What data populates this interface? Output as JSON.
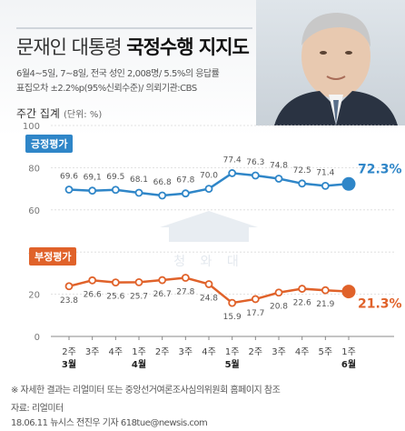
{
  "header": {
    "title_prefix": "문재인 대통령",
    "title_main": "국정수행 지지도",
    "desc_line1": "6월4~5일, 7~8일, 전국 성인 2,008명/ 5.5%의 응답률",
    "desc_line2": "표집오차 ±2.2%p(95%신뢰수준)/ 의뢰기관:CBS",
    "unit_label": "주간 집계",
    "unit_sub": "(단위: %)"
  },
  "watermark": {
    "text": "청 와 대"
  },
  "chart_data": {
    "type": "line",
    "x": [
      "2주",
      "3주",
      "4주",
      "1주",
      "2주",
      "3주",
      "4주",
      "1주",
      "2주",
      "3주",
      "4주",
      "5주",
      "1주"
    ],
    "month_labels": [
      {
        "index": 0,
        "label": "3월"
      },
      {
        "index": 3,
        "label": "4월"
      },
      {
        "index": 7,
        "label": "5월"
      },
      {
        "index": 12,
        "label": "6월"
      }
    ],
    "ylim": [
      0,
      100
    ],
    "yticks": [
      0,
      20,
      40,
      60,
      80,
      100
    ],
    "grid": true,
    "series": [
      {
        "name": "긍정평가",
        "color": "#2f86c8",
        "values": [
          69.6,
          69.1,
          69.5,
          68.1,
          66.8,
          67.8,
          70.0,
          77.4,
          76.3,
          74.8,
          72.5,
          71.4,
          72.3
        ],
        "labels": [
          "69.6",
          "69,1",
          "69.5",
          "68.1",
          "66.8",
          "67.8",
          "70.0",
          "77.4",
          "76.3",
          "74.8",
          "72.5",
          "71.4",
          "72.3%"
        ]
      },
      {
        "name": "부정평가",
        "color": "#e0622a",
        "values": [
          23.8,
          26.6,
          25.6,
          25.7,
          26.7,
          27.8,
          24.8,
          15.9,
          17.7,
          20.8,
          22.6,
          21.9,
          21.3
        ],
        "labels": [
          "23.8",
          "26.6",
          "25.6",
          "25.7",
          "26.7",
          "27.8",
          "24.8",
          "15.9",
          "17.7",
          "20.8",
          "22.6",
          "21.9",
          "21.3%"
        ]
      }
    ]
  },
  "footer": {
    "note": "※ 자세한 결과는 리얼미터 또는 중앙선거여론조사심의위원회 홈페이지 참조",
    "source": "자료: 리얼미터",
    "credit": "18.06.11 뉴시스 전진우 기자 618tue@newsis.com"
  }
}
